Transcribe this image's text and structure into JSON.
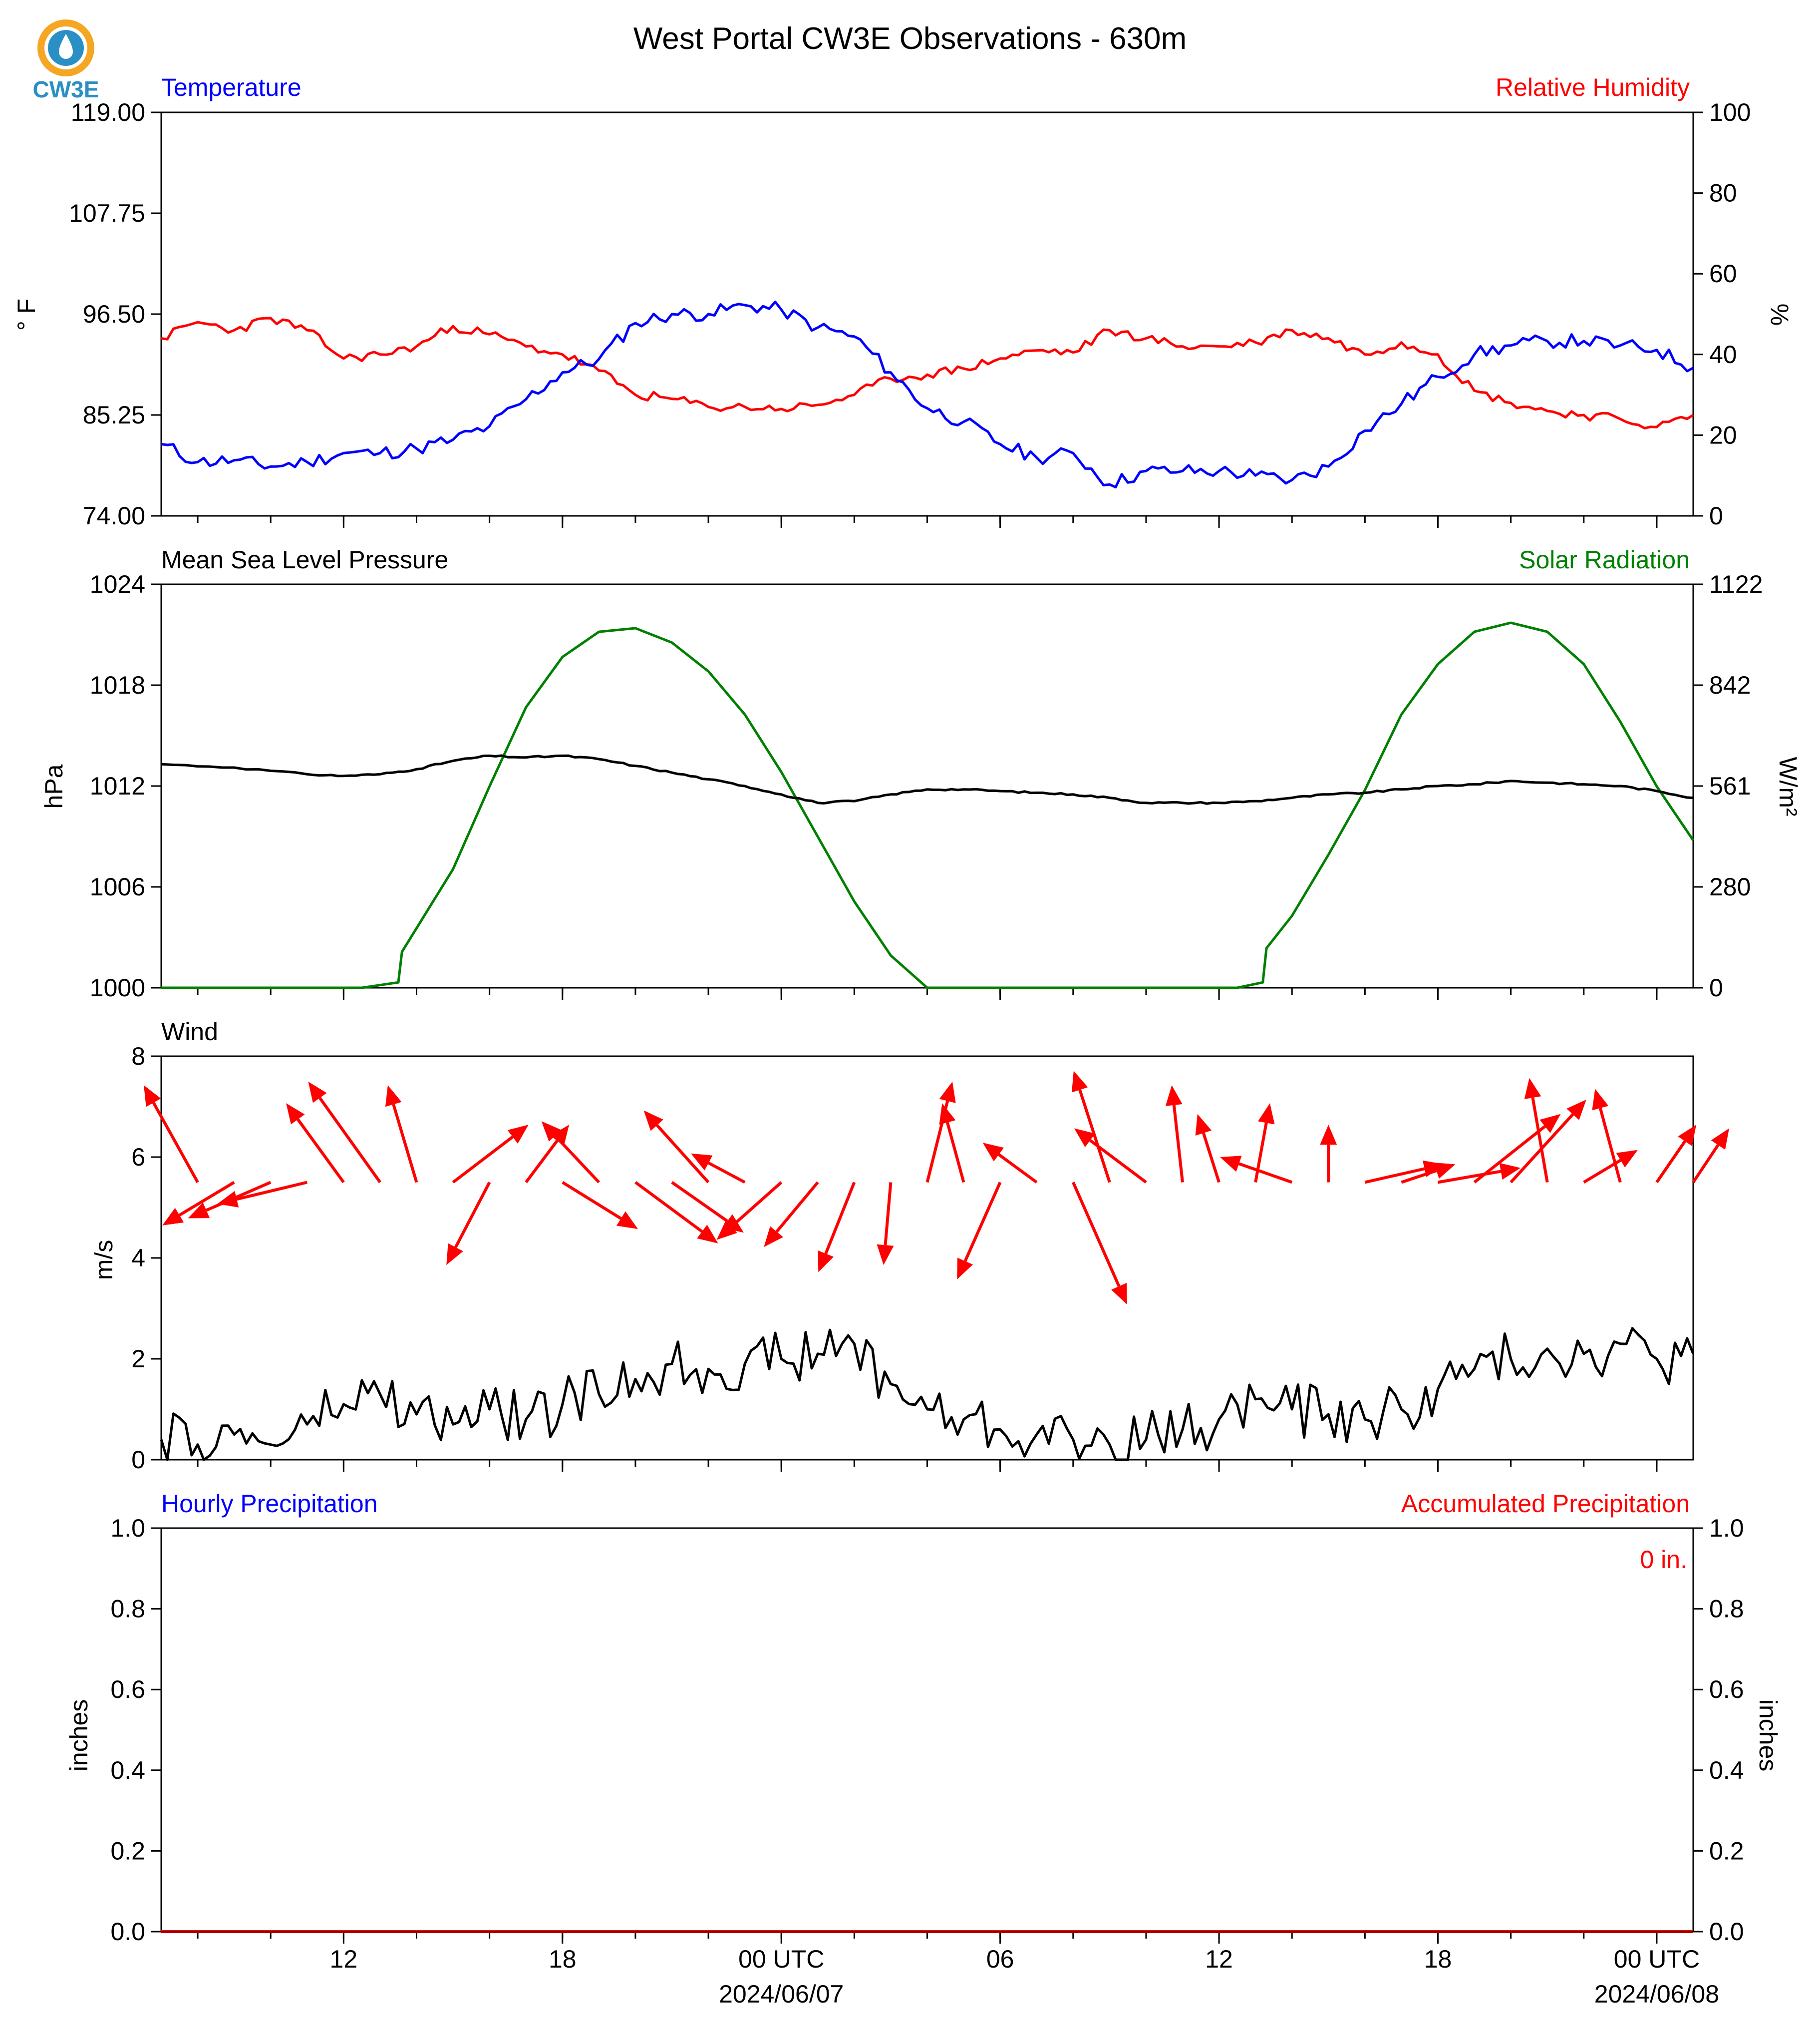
{
  "title": "West Portal CW3E Observations - 630m",
  "logo_text": "CW3E",
  "colors": {
    "temperature": "#0000ff",
    "humidity": "#ff0000",
    "pressure": "#000000",
    "solar": "#008000",
    "wind_speed": "#000000",
    "wind_arrow": "#ff0000",
    "precip_hourly": "#0000ff",
    "precip_accum": "#ff0000",
    "logo_orange": "#f5a623",
    "logo_blue": "#2a8fc4"
  },
  "x_ticks": {
    "major": [
      {
        "h": 12,
        "label": "12"
      },
      {
        "h": 18,
        "label": "18"
      },
      {
        "h": 24,
        "label": "00 UTC",
        "date": "2024/06/07"
      },
      {
        "h": 30,
        "label": "06"
      },
      {
        "h": 36,
        "label": "12"
      },
      {
        "h": 42,
        "label": "18"
      },
      {
        "h": 48,
        "label": "00 UTC",
        "date": "2024/06/08"
      }
    ],
    "minor_step_h": 2
  },
  "chart_data": [
    {
      "type": "line",
      "panel": "temp_rh",
      "left_title": "Temperature",
      "right_title": "Relative Humidity",
      "ylabel_left": "° F",
      "ylabel_right": "%",
      "xlim_hours": [
        7,
        49
      ],
      "ylim_left": [
        74.0,
        119.0
      ],
      "yticks_left": [
        "74.00",
        "85.25",
        "96.50",
        "107.75",
        "119.00"
      ],
      "ylim_right": [
        0,
        100
      ],
      "yticks_right": [
        "0",
        "20",
        "40",
        "60",
        "80",
        "100"
      ],
      "series": [
        {
          "name": "Temperature",
          "axis": "left",
          "x": [
            7,
            8,
            9,
            10,
            11,
            12,
            13,
            14,
            15,
            16,
            17,
            18,
            19,
            20,
            21,
            22,
            23,
            24,
            25,
            26,
            27,
            28,
            29,
            30,
            31,
            32,
            33,
            34,
            35,
            36,
            37,
            38,
            39,
            40,
            41,
            42,
            43,
            44,
            45,
            46,
            47,
            48,
            49
          ],
          "y": [
            82.0,
            80.0,
            80.2,
            79.5,
            80.0,
            81.0,
            81.0,
            81.5,
            82.5,
            84.0,
            87.0,
            90.0,
            91.5,
            95.5,
            96.5,
            96.5,
            97.5,
            97.0,
            95.0,
            94.0,
            90.0,
            86.0,
            84.5,
            82.0,
            80.5,
            81.0,
            77.5,
            79.0,
            79.0,
            79.0,
            78.5,
            78.0,
            79.5,
            83.5,
            86.5,
            89.5,
            92.0,
            93.0,
            93.5,
            93.5,
            93.0,
            92.5,
            90.5
          ]
        },
        {
          "name": "Relative Humidity",
          "axis": "right",
          "x": [
            7,
            8,
            9,
            10,
            11,
            12,
            13,
            14,
            15,
            16,
            17,
            18,
            19,
            20,
            21,
            22,
            23,
            24,
            25,
            26,
            27,
            28,
            29,
            30,
            31,
            32,
            33,
            34,
            35,
            36,
            37,
            38,
            39,
            40,
            41,
            42,
            43,
            44,
            45,
            46,
            47,
            48,
            49
          ],
          "y": [
            44.0,
            48.0,
            46.0,
            49.0,
            46.0,
            39.0,
            40.0,
            42.0,
            47.0,
            45.0,
            42.0,
            40.0,
            36.0,
            30.0,
            29.0,
            27.0,
            27.0,
            26.5,
            27.5,
            30.0,
            34.0,
            35.0,
            36.5,
            39.0,
            41.0,
            40.5,
            46.0,
            44.0,
            42.0,
            42.0,
            43.0,
            46.0,
            44.0,
            40.0,
            43.0,
            40.0,
            31.0,
            28.0,
            26.0,
            25.0,
            24.0,
            22.0,
            25.0
          ]
        }
      ]
    },
    {
      "type": "line",
      "panel": "pressure_solar",
      "left_title": "Mean Sea Level Pressure",
      "right_title": "Solar Radiation",
      "ylabel_left": "hPa",
      "ylabel_right": "W/m²",
      "xlim_hours": [
        7,
        49
      ],
      "ylim_left": [
        1000,
        1024
      ],
      "yticks_left": [
        "1000",
        "1006",
        "1012",
        "1018",
        "1024"
      ],
      "ylim_right": [
        0,
        1122
      ],
      "yticks_right": [
        "0",
        "280",
        "561",
        "842",
        "1122"
      ],
      "series": [
        {
          "name": "Mean Sea Level Pressure",
          "axis": "left",
          "x": [
            7,
            9,
            11,
            12,
            13,
            14,
            15,
            16,
            17,
            18,
            19,
            20,
            21,
            22,
            23,
            24,
            25,
            26,
            27,
            28,
            29,
            30,
            31,
            32,
            33,
            34,
            35,
            36,
            37,
            38,
            39,
            40,
            41,
            42,
            43,
            44,
            45,
            46,
            47,
            48,
            49
          ],
          "y": [
            1013.3,
            1013.1,
            1012.7,
            1012.6,
            1012.7,
            1013.0,
            1013.5,
            1013.8,
            1013.7,
            1013.8,
            1013.6,
            1013.2,
            1012.8,
            1012.4,
            1012.0,
            1011.5,
            1011.0,
            1011.1,
            1011.5,
            1011.8,
            1011.8,
            1011.7,
            1011.6,
            1011.5,
            1011.3,
            1011.0,
            1011.0,
            1011.0,
            1011.1,
            1011.3,
            1011.5,
            1011.6,
            1011.8,
            1012.0,
            1012.1,
            1012.3,
            1012.2,
            1012.1,
            1012.0,
            1011.7,
            1011.3
          ]
        },
        {
          "name": "Solar Radiation",
          "axis": "right",
          "x": [
            7,
            12.5,
            13.5,
            13.6,
            15,
            16,
            17,
            18,
            19,
            20,
            21,
            22,
            23,
            24,
            25,
            26,
            27,
            28,
            29,
            35,
            36.5,
            37.2,
            37.3,
            38,
            39,
            40,
            41,
            42,
            43,
            44,
            45,
            46,
            47,
            48,
            49
          ],
          "y": [
            0,
            0,
            15,
            100,
            330,
            560,
            780,
            920,
            990,
            1000,
            960,
            880,
            760,
            600,
            420,
            240,
            90,
            0,
            0,
            0,
            0,
            15,
            110,
            200,
            370,
            550,
            760,
            900,
            990,
            1015,
            990,
            900,
            740,
            560,
            410
          ]
        }
      ]
    },
    {
      "type": "line",
      "panel": "wind",
      "left_title": "Wind",
      "ylabel_left": "m/s",
      "xlim_hours": [
        7,
        49
      ],
      "ylim_left": [
        0,
        8
      ],
      "yticks_left": [
        "0",
        "2",
        "4",
        "6",
        "8"
      ],
      "series": [
        {
          "name": "Wind speed",
          "x": [
            7,
            8,
            9,
            10,
            11,
            12,
            13,
            14,
            15,
            16,
            17,
            18,
            19,
            20,
            21,
            22,
            23,
            24,
            25,
            26,
            27,
            28,
            29,
            30,
            31,
            32,
            33,
            34,
            35,
            36,
            37,
            38,
            39,
            40,
            41,
            42,
            43,
            44,
            45,
            46,
            47,
            48,
            49
          ],
          "y": [
            0.4,
            0.3,
            0.5,
            0.3,
            0.7,
            1.1,
            1.3,
            0.9,
            0.7,
            1.0,
            0.8,
            1.1,
            1.3,
            1.6,
            1.9,
            1.8,
            1.9,
            2.0,
            2.1,
            2.3,
            1.5,
            1.0,
            0.8,
            0.6,
            0.5,
            0.4,
            0.3,
            0.4,
            0.6,
            0.8,
            1.2,
            1.0,
            0.9,
            0.8,
            1.0,
            1.4,
            1.8,
            2.0,
            2.2,
            2.1,
            2.3,
            2.0,
            2.1
          ]
        },
        {
          "name": "Wind direction",
          "x": [
            8,
            9,
            10,
            11,
            12,
            13,
            14,
            15,
            16,
            17,
            18,
            19,
            20,
            21,
            22,
            23,
            24,
            25,
            26,
            27,
            28,
            29,
            30,
            31,
            32,
            33,
            34,
            35,
            36,
            37,
            38,
            39,
            40,
            41,
            42,
            43,
            44,
            45,
            46,
            47,
            48,
            49
          ],
          "u": [
            -1.5,
            -2.0,
            -2.3,
            -2.5,
            -1.6,
            -2.0,
            -0.8,
            2.1,
            -1.2,
            1.2,
            2.1,
            -1.6,
            2.3,
            2.0,
            -1.8,
            -1.5,
            -1.8,
            -1.5,
            -1.0,
            -0.2,
            0.7,
            -0.6,
            -1.2,
            -1.5,
            1.5,
            -1.0,
            -2.0,
            -0.3,
            -0.6,
            0.4,
            -2.0,
            0.0,
            2.2,
            1.5,
            2.3,
            2.4,
            2.1,
            -0.5,
            1.5,
            -0.7,
            1.1,
            1.0
          ],
          "v": [
            2.7,
            -1.2,
            -1.0,
            -0.6,
            2.2,
            2.8,
            2.7,
            1.6,
            -2.3,
            1.6,
            -1.3,
            1.7,
            -1.7,
            -1.4,
            2.0,
            0.8,
            -1.6,
            -1.8,
            -2.5,
            -2.3,
            2.8,
            2.2,
            -2.7,
            1.1,
            -3.4,
            3.1,
            1.5,
            2.7,
            1.9,
            2.2,
            0.7,
            1.6,
            0.5,
            0.5,
            0.4,
            1.9,
            2.3,
            2.9,
            0.9,
            2.6,
            1.6,
            1.5
          ]
        }
      ]
    },
    {
      "type": "line",
      "panel": "precip",
      "left_title": "Hourly Precipitation",
      "right_title": "Accumulated Precipitation",
      "ylabel_left": "inches",
      "ylabel_right": "inches",
      "xlim_hours": [
        7,
        49
      ],
      "ylim_left": [
        0,
        1
      ],
      "yticks_left": [
        "0.0",
        "0.2",
        "0.4",
        "0.6",
        "0.8",
        "1.0"
      ],
      "ylim_right": [
        0,
        1
      ],
      "yticks_right": [
        "0.0",
        "0.2",
        "0.4",
        "0.6",
        "0.8",
        "1.0"
      ],
      "accumulated_label": "0 in.",
      "series": [
        {
          "name": "Hourly Precipitation",
          "x": [
            7,
            49
          ],
          "y": [
            0,
            0
          ]
        },
        {
          "name": "Accumulated Precipitation",
          "x": [
            7,
            49
          ],
          "y": [
            0,
            0
          ]
        }
      ]
    }
  ]
}
